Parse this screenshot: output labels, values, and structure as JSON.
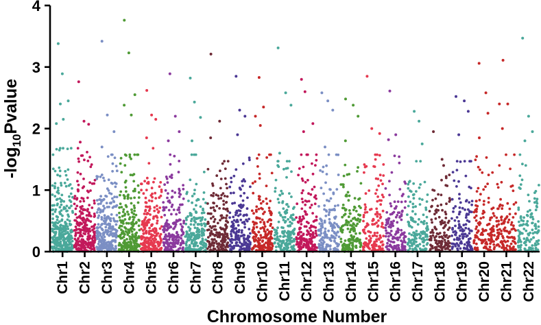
{
  "chart_data": {
    "type": "scatter",
    "subtype": "manhattan",
    "title": "",
    "xlabel": "Chromosome Number",
    "ylabel": {
      "prefix": "-log",
      "subscript": "10",
      "suffix": "Pvalue"
    },
    "ylim": [
      0,
      4
    ],
    "yticks": [
      "0",
      "1",
      "2",
      "3",
      "4"
    ],
    "grid": false,
    "legend": "none",
    "categories": [
      "Chr1",
      "Chr2",
      "Chr3",
      "Chr4",
      "Chr5",
      "Chr6",
      "Chr7",
      "Chr8",
      "Chr9",
      "Chr10",
      "Chr11",
      "Chr12",
      "Chr13",
      "Chr14",
      "Chr15",
      "Chr16",
      "Chr17",
      "Chr18",
      "Chr19",
      "Chr20",
      "Chr21",
      "Chr22"
    ],
    "colors": [
      "#4aa89a",
      "#c2185b",
      "#7b8fc4",
      "#4f9a35",
      "#e6394f",
      "#8b3a9e",
      "#4aa89a",
      "#6e2b36",
      "#4b3894",
      "#c62828",
      "#4aa89a",
      "#c2185b",
      "#7b8fc4",
      "#4f9a35",
      "#e6394f",
      "#8b3a9e",
      "#4aa89a",
      "#6e2b36",
      "#4b3894",
      "#c62828",
      "#c62828",
      "#4aa89a"
    ],
    "peaks": [
      {
        "chromosome": "Chr1",
        "values": [
          3.38,
          2.89,
          2.45,
          2.4,
          2.15,
          2.08
        ]
      },
      {
        "chromosome": "Chr2",
        "values": [
          2.76,
          2.12,
          2.07,
          1.78
        ]
      },
      {
        "chromosome": "Chr3",
        "values": [
          3.42,
          2.22,
          1.95,
          1.7
        ]
      },
      {
        "chromosome": "Chr4",
        "values": [
          3.76,
          3.23,
          2.55,
          2.38,
          2.22
        ]
      },
      {
        "chromosome": "Chr5",
        "values": [
          2.62,
          2.22,
          2.15,
          1.85
        ]
      },
      {
        "chromosome": "Chr6",
        "values": [
          2.89,
          2.2,
          1.95,
          1.8
        ]
      },
      {
        "chromosome": "Chr7",
        "values": [
          2.82,
          2.43,
          2.18,
          1.8
        ]
      },
      {
        "chromosome": "Chr8",
        "values": [
          3.21,
          2.12,
          1.85
        ]
      },
      {
        "chromosome": "Chr9",
        "values": [
          2.85,
          2.3,
          2.2,
          1.9
        ]
      },
      {
        "chromosome": "Chr10",
        "values": [
          2.83,
          2.35,
          2.2,
          2.05
        ]
      },
      {
        "chromosome": "Chr11",
        "values": [
          3.31,
          2.58,
          2.38,
          1.6
        ]
      },
      {
        "chromosome": "Chr12",
        "values": [
          2.8,
          2.6,
          2.08,
          1.95
        ]
      },
      {
        "chromosome": "Chr13",
        "values": [
          2.58,
          2.45,
          2.3,
          1.7
        ]
      },
      {
        "chromosome": "Chr14",
        "values": [
          2.48,
          2.38,
          2.2,
          1.8
        ]
      },
      {
        "chromosome": "Chr15",
        "values": [
          2.85,
          2.0,
          1.92
        ]
      },
      {
        "chromosome": "Chr16",
        "values": [
          2.61,
          1.9,
          1.82
        ]
      },
      {
        "chromosome": "Chr17",
        "values": [
          2.28,
          2.12,
          1.75
        ]
      },
      {
        "chromosome": "Chr18",
        "values": [
          1.95,
          1.5,
          1.4
        ]
      },
      {
        "chromosome": "Chr19",
        "values": [
          2.52,
          2.45,
          2.28,
          1.9
        ]
      },
      {
        "chromosome": "Chr20",
        "values": [
          3.06,
          2.58,
          2.25,
          1.85
        ]
      },
      {
        "chromosome": "Chr21",
        "values": [
          3.11,
          2.4,
          2.4,
          2.0
        ]
      },
      {
        "chromosome": "Chr22",
        "values": [
          3.47,
          2.2,
          1.95,
          1.8
        ]
      }
    ],
    "bulk": {
      "description_free": true,
      "typical_max": [
        1.6,
        1.6,
        1.5,
        1.5,
        1.6,
        1.5,
        1.5,
        1.4,
        1.5,
        1.5,
        1.4,
        1.5,
        1.5,
        1.6,
        1.5,
        1.5,
        1.4,
        1.4,
        1.4,
        1.5,
        1.5,
        1.5
      ],
      "points_per_chromosome": [
        300,
        270,
        250,
        230,
        220,
        210,
        200,
        190,
        180,
        180,
        180,
        180,
        160,
        160,
        150,
        140,
        140,
        130,
        130,
        130,
        120,
        130
      ]
    }
  }
}
